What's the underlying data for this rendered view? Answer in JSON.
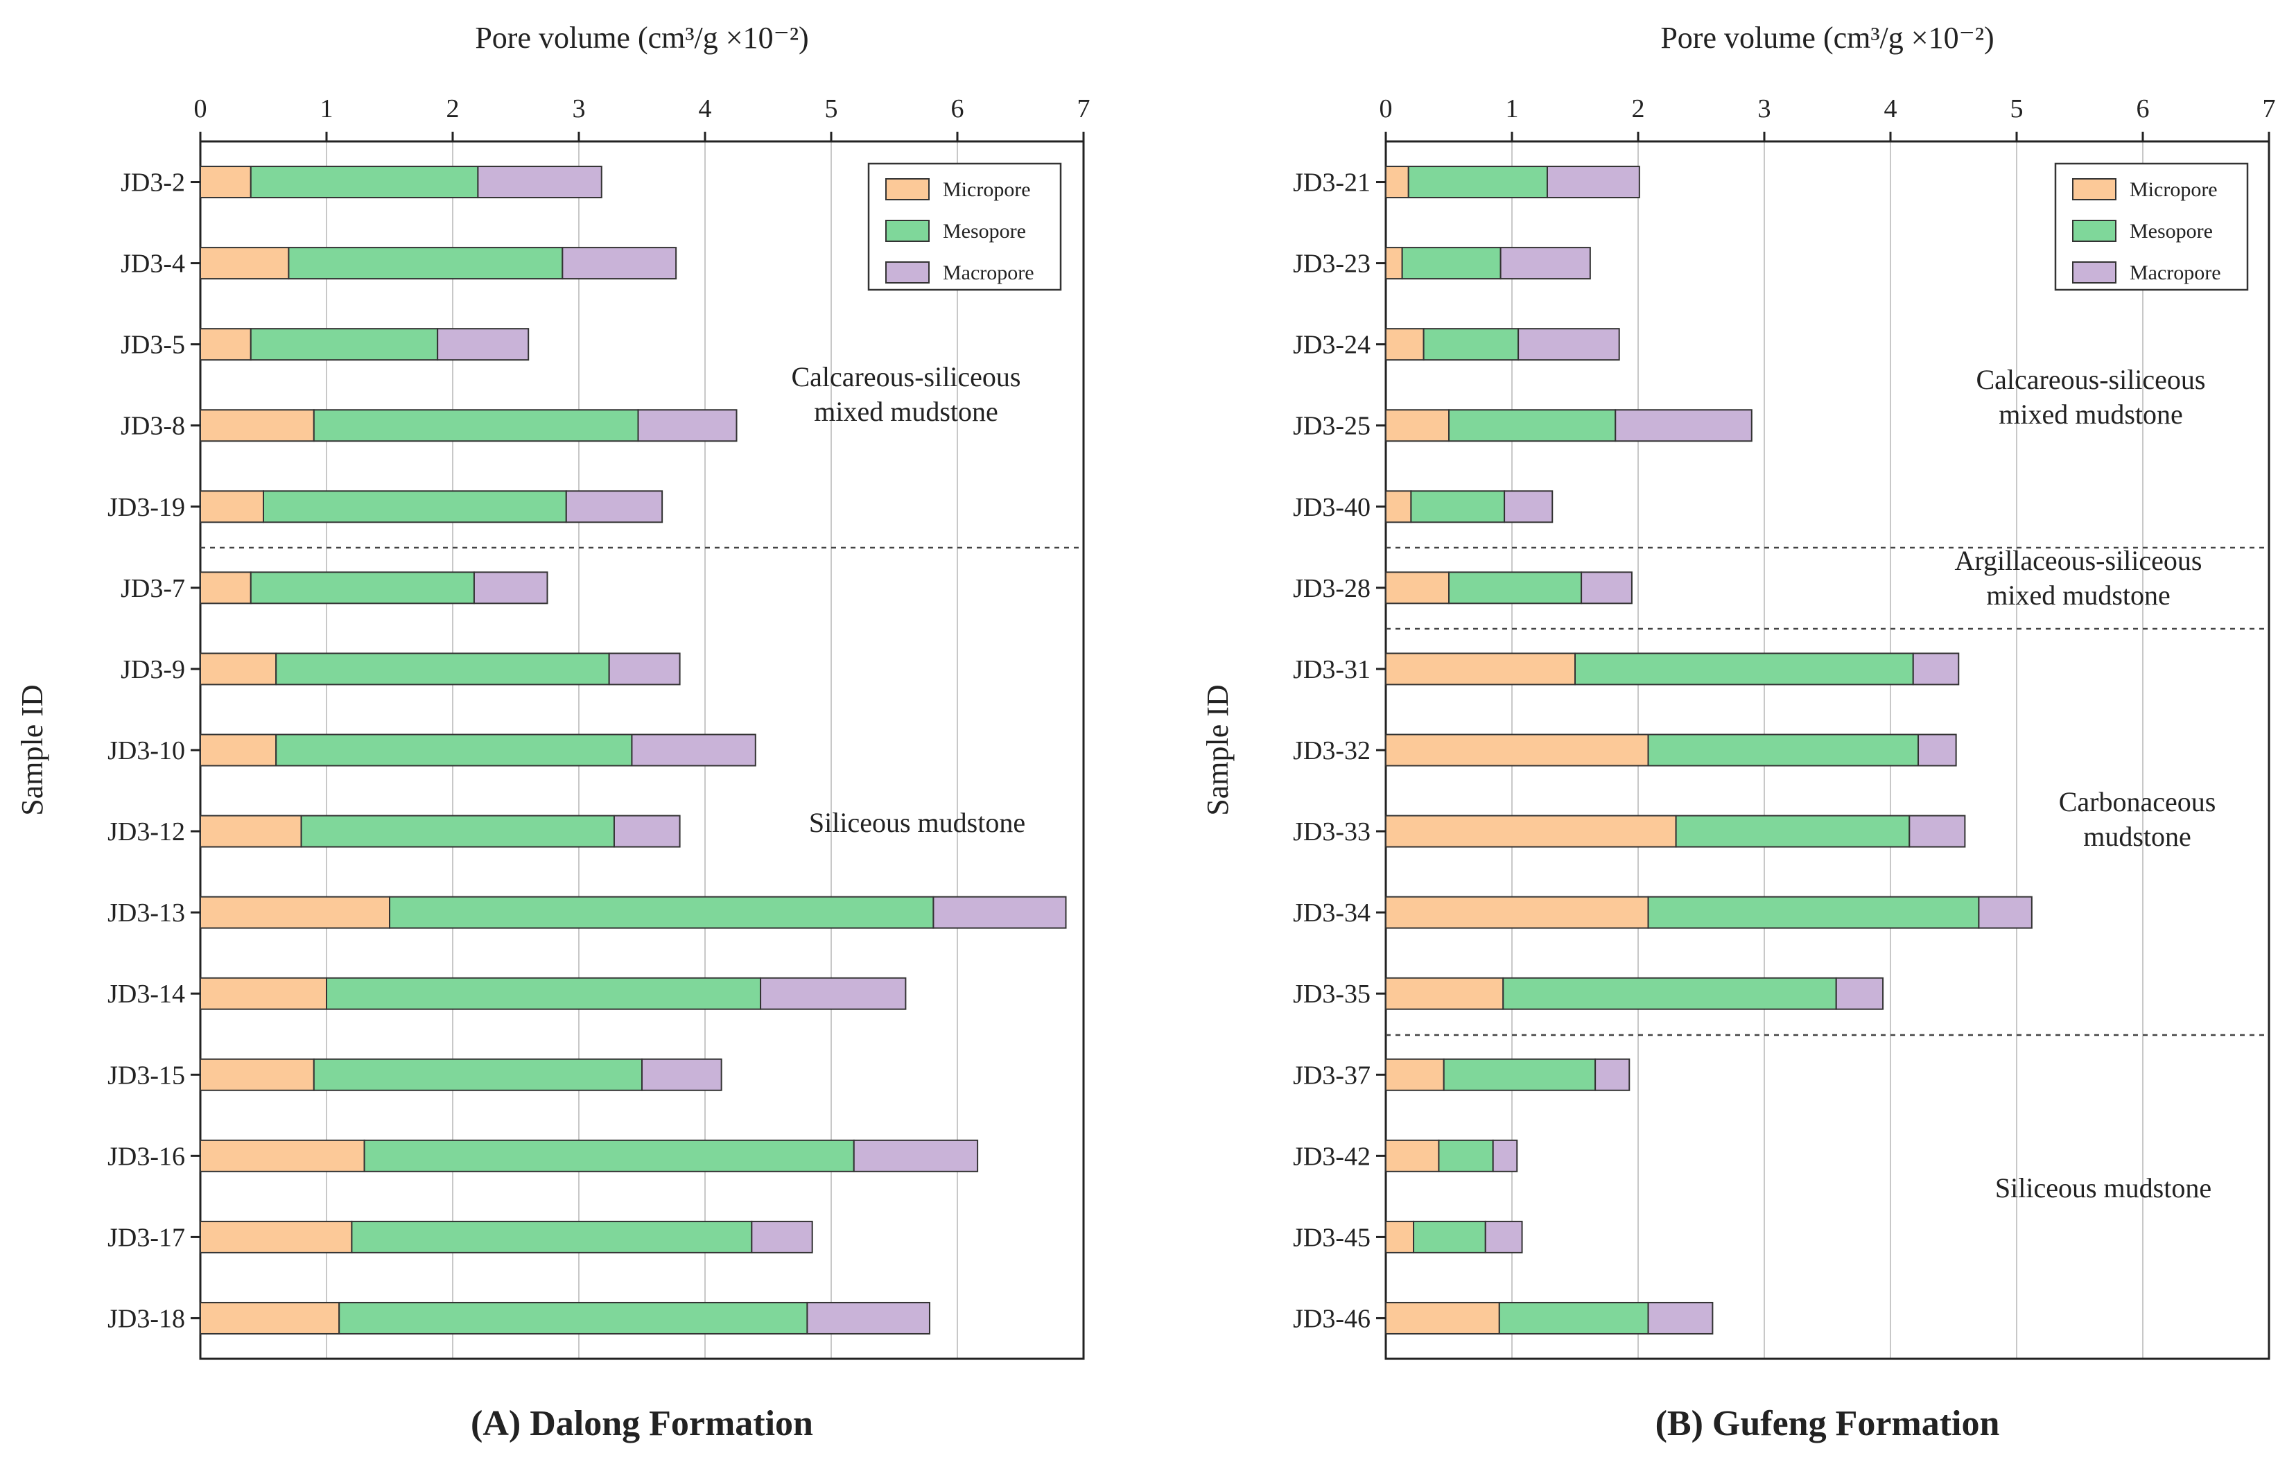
{
  "legend_items": [
    {
      "name": "Micropore",
      "color": "#fcc998"
    },
    {
      "name": "Mesopore",
      "color": "#7fd79a"
    },
    {
      "name": "Macropore",
      "color": "#c9b3d8"
    }
  ],
  "panel_a": {
    "chart_data": {
      "type": "bar",
      "orientation": "horizontal",
      "stacked": true,
      "title": "(A)  Dalong Formation",
      "xlabel": "Pore volume (cm³/g ×10⁻²)",
      "ylabel": "Sample ID",
      "xlim": [
        0,
        7
      ],
      "xticks": [
        "0",
        "1",
        "2",
        "3",
        "4",
        "5",
        "6",
        "7"
      ],
      "grid": "vertical",
      "legend": "top-right",
      "categories": [
        "JD3-2",
        "JD3-4",
        "JD3-5",
        "JD3-8",
        "JD3-19",
        "JD3-7",
        "JD3-9",
        "JD3-10",
        "JD3-12",
        "JD3-13",
        "JD3-14",
        "JD3-15",
        "JD3-16",
        "JD3-17",
        "JD3-18"
      ],
      "series": [
        {
          "name": "Micropore",
          "values": [
            0.4,
            0.7,
            0.4,
            0.9,
            0.5,
            0.4,
            0.6,
            0.6,
            0.8,
            1.5,
            1.0,
            0.9,
            1.3,
            1.2,
            1.1
          ]
        },
        {
          "name": "Mesopore",
          "values": [
            1.8,
            2.17,
            1.48,
            2.57,
            2.4,
            1.77,
            2.64,
            2.82,
            2.48,
            4.31,
            3.44,
            2.6,
            3.88,
            3.17,
            3.71
          ]
        },
        {
          "name": "Macropore",
          "values": [
            0.98,
            0.9,
            0.72,
            0.78,
            0.76,
            0.58,
            0.56,
            0.98,
            0.52,
            1.05,
            1.15,
            0.63,
            0.98,
            0.48,
            0.97
          ]
        }
      ],
      "groups": [
        {
          "label_lines": [
            "Calcareous-siliceous",
            "mixed mudstone"
          ]
        },
        {
          "label_lines": [
            "Siliceous mudstone"
          ]
        }
      ]
    }
  },
  "panel_b": {
    "chart_data": {
      "type": "bar",
      "orientation": "horizontal",
      "stacked": true,
      "title": "(B)  Gufeng Formation",
      "xlabel": "Pore volume (cm³/g ×10⁻²)",
      "ylabel": "Sample ID",
      "xlim": [
        0,
        7
      ],
      "xticks": [
        "0",
        "1",
        "2",
        "3",
        "4",
        "5",
        "6",
        "7"
      ],
      "grid": "vertical",
      "legend": "top-right",
      "categories": [
        "JD3-21",
        "JD3-23",
        "JD3-24",
        "JD3-25",
        "JD3-40",
        "JD3-28",
        "JD3-31",
        "JD3-32",
        "JD3-33",
        "JD3-34",
        "JD3-35",
        "JD3-37",
        "JD3-42",
        "JD3-45",
        "JD3-46"
      ],
      "series": [
        {
          "name": "Micropore",
          "values": [
            0.18,
            0.13,
            0.3,
            0.5,
            0.2,
            0.5,
            1.5,
            2.08,
            2.3,
            2.08,
            0.93,
            0.46,
            0.42,
            0.22,
            0.9
          ]
        },
        {
          "name": "Mesopore",
          "values": [
            1.1,
            0.78,
            0.75,
            1.32,
            0.74,
            1.05,
            2.68,
            2.14,
            1.85,
            2.62,
            2.64,
            1.2,
            0.43,
            0.57,
            1.18
          ]
        },
        {
          "name": "Macropore",
          "values": [
            0.73,
            0.71,
            0.8,
            1.08,
            0.38,
            0.4,
            0.36,
            0.3,
            0.44,
            0.42,
            0.37,
            0.27,
            0.19,
            0.29,
            0.51
          ]
        }
      ],
      "groups": [
        {
          "label_lines": [
            "Calcareous-siliceous",
            "mixed mudstone"
          ]
        },
        {
          "label_lines": [
            "Argillaceous-siliceous",
            "mixed mudstone"
          ]
        },
        {
          "label_lines": [
            "Carbonaceous",
            "mudstone"
          ]
        },
        {
          "label_lines": [
            "Siliceous mudstone"
          ]
        }
      ]
    }
  }
}
